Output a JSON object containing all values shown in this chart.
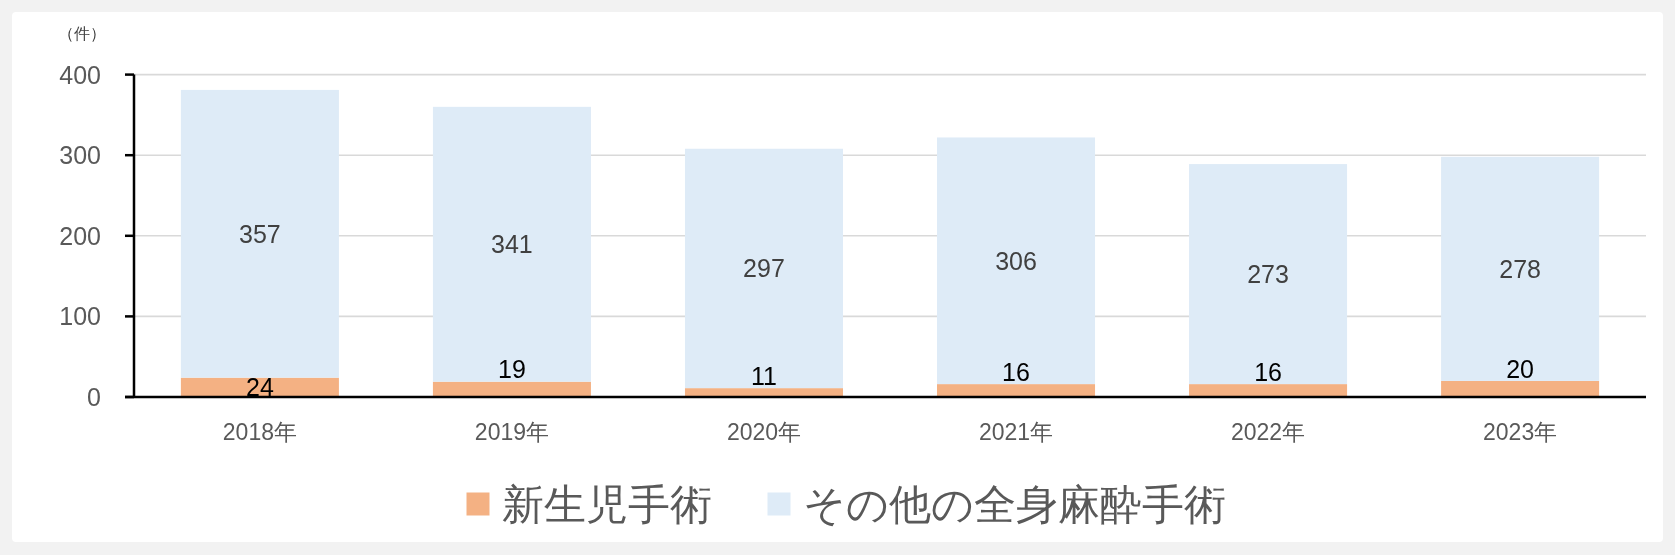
{
  "chart_data": {
    "type": "bar",
    "ylabel": "（件）",
    "categories": [
      "2018年",
      "2019年",
      "2020年",
      "2021年",
      "2022年",
      "2023年"
    ],
    "series": [
      {
        "name": "新生児手術",
        "color": "#f4b183",
        "values": [
          24,
          19,
          11,
          16,
          16,
          20
        ]
      },
      {
        "name": "その他の全身麻酔手術",
        "color": "#deebf7",
        "values": [
          357,
          341,
          297,
          306,
          273,
          278
        ]
      }
    ],
    "stacked": true,
    "ylim": [
      0,
      400
    ],
    "yticks": [
      0,
      100,
      200,
      300,
      400
    ],
    "grid": "y",
    "legend": "bottom",
    "data_labels": true
  }
}
